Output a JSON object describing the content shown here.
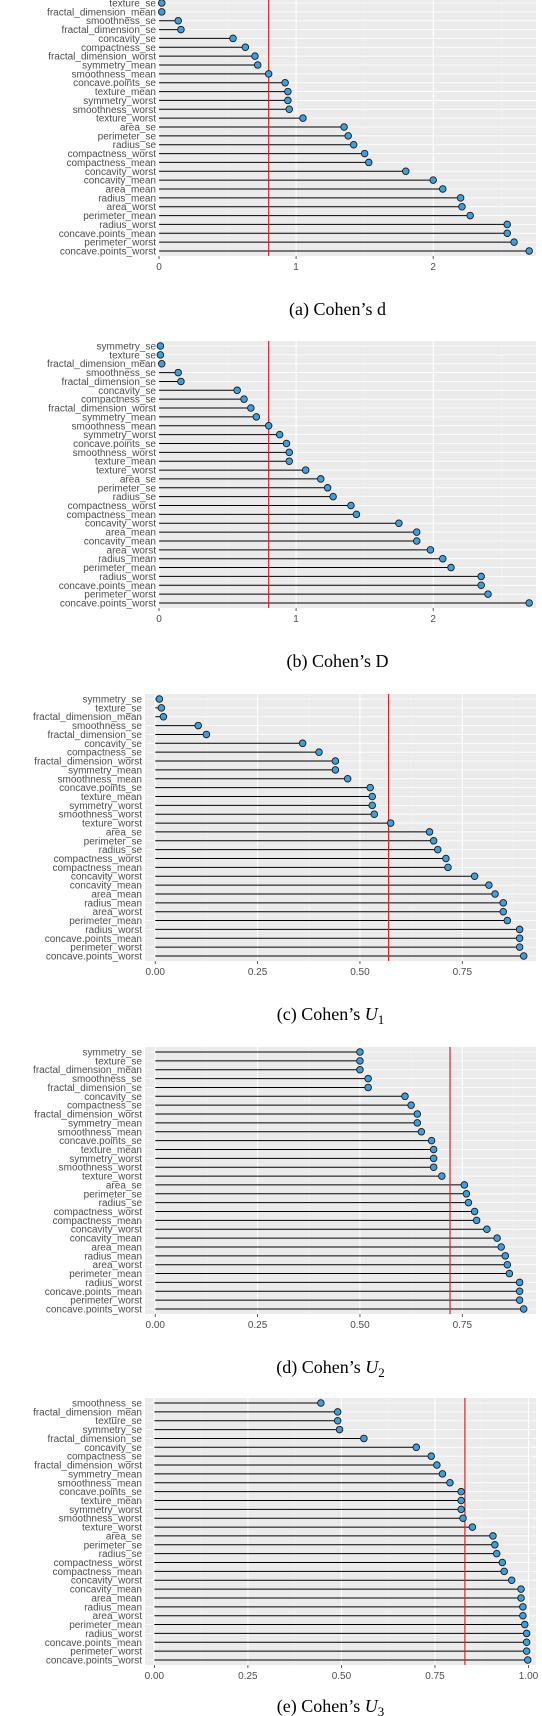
{
  "colors": {
    "panel_bg": "#ebebeb",
    "grid_major": "#ffffff",
    "grid_minor": "#f4f4f4",
    "threshold": "#d62728",
    "point_fill": "#3f9fdc",
    "point_stroke": "#1a1a1a",
    "segment": "#000000"
  },
  "chart_data": [
    {
      "type": "lollipop",
      "caption_label": "(a)",
      "caption_text": "Cohen’s d",
      "caption_math": "",
      "caption_sub": "",
      "xlim": [
        0,
        2.75
      ],
      "xticks": [
        0,
        1,
        2
      ],
      "xtick_labels": [
        "0",
        "1",
        "2"
      ],
      "threshold": 0.8,
      "grid": true,
      "categories": [
        "texture_se",
        "fractal_dimension_mean",
        "smoothness_se",
        "fractal_dimension_se",
        "concavity_se",
        "compactness_se",
        "fractal_dimension_worst",
        "symmetry_mean",
        "smoothness_mean",
        "concave.points_se",
        "texture_mean",
        "symmetry_worst",
        "smoothness_worst",
        "texture_worst",
        "area_se",
        "perimeter_se",
        "radius_se",
        "compactness_worst",
        "compactness_mean",
        "concavity_worst",
        "concavity_mean",
        "area_mean",
        "radius_mean",
        "area_worst",
        "perimeter_mean",
        "radius_worst",
        "concave.points_mean",
        "perimeter_worst",
        "concave.points_worst"
      ],
      "values": [
        0.02,
        0.02,
        0.14,
        0.16,
        0.54,
        0.63,
        0.7,
        0.72,
        0.8,
        0.92,
        0.94,
        0.94,
        0.95,
        1.05,
        1.35,
        1.38,
        1.42,
        1.5,
        1.53,
        1.8,
        2.0,
        2.07,
        2.2,
        2.21,
        2.27,
        2.54,
        2.54,
        2.59,
        2.7
      ]
    },
    {
      "type": "lollipop",
      "caption_label": "(b)",
      "caption_text": "Cohen’s D",
      "caption_math": "",
      "caption_sub": "",
      "xlim": [
        0,
        2.75
      ],
      "xticks": [
        0,
        1,
        2
      ],
      "xtick_labels": [
        "0",
        "1",
        "2"
      ],
      "threshold": 0.8,
      "grid": true,
      "categories": [
        "symmetry_se",
        "texture_se",
        "fractal_dimension_mean",
        "smoothness_se",
        "fractal_dimension_se",
        "concavity_se",
        "compactness_se",
        "fractal_dimension_worst",
        "symmetry_mean",
        "smoothness_mean",
        "symmetry_worst",
        "concave.points_se",
        "smoothness_worst",
        "texture_mean",
        "texture_worst",
        "area_se",
        "perimeter_se",
        "radius_se",
        "compactness_worst",
        "compactness_mean",
        "concavity_worst",
        "area_mean",
        "concavity_mean",
        "area_worst",
        "radius_mean",
        "perimeter_mean",
        "radius_worst",
        "concave.points_mean",
        "perimeter_worst",
        "concave.points_worst"
      ],
      "values": [
        0.01,
        0.01,
        0.02,
        0.14,
        0.16,
        0.57,
        0.62,
        0.67,
        0.71,
        0.8,
        0.88,
        0.93,
        0.95,
        0.95,
        1.07,
        1.18,
        1.23,
        1.27,
        1.4,
        1.44,
        1.75,
        1.88,
        1.88,
        1.98,
        2.07,
        2.13,
        2.35,
        2.35,
        2.4,
        2.7
      ]
    },
    {
      "type": "lollipop",
      "caption_label": "(c)",
      "caption_text": "Cohen’s ",
      "caption_math": "U",
      "caption_sub": "1",
      "xlim": [
        -0.025,
        0.93
      ],
      "xticks": [
        0,
        0.25,
        0.5,
        0.75
      ],
      "xtick_labels": [
        "0.00",
        "0.25",
        "0.50",
        "0.75"
      ],
      "threshold": 0.57,
      "grid": true,
      "categories": [
        "symmetry_se",
        "texture_se",
        "fractal_dimension_mean",
        "smoothness_se",
        "fractal_dimension_se",
        "concavity_se",
        "compactness_se",
        "fractal_dimension_worst",
        "symmetry_mean",
        "smoothness_mean",
        "concave.points_se",
        "texture_mean",
        "symmetry_worst",
        "smoothness_worst",
        "texture_worst",
        "area_se",
        "perimeter_se",
        "radius_se",
        "compactness_worst",
        "compactness_mean",
        "concavity_worst",
        "concavity_mean",
        "area_mean",
        "radius_mean",
        "area_worst",
        "perimeter_mean",
        "radius_worst",
        "concave.points_mean",
        "perimeter_worst",
        "concave.points_worst"
      ],
      "values": [
        0.01,
        0.015,
        0.02,
        0.105,
        0.125,
        0.36,
        0.4,
        0.44,
        0.44,
        0.47,
        0.525,
        0.53,
        0.53,
        0.535,
        0.575,
        0.67,
        0.68,
        0.69,
        0.71,
        0.715,
        0.78,
        0.815,
        0.83,
        0.85,
        0.85,
        0.86,
        0.89,
        0.89,
        0.89,
        0.9
      ]
    },
    {
      "type": "lollipop",
      "caption_label": "(d)",
      "caption_text": "Cohen’s ",
      "caption_math": "U",
      "caption_sub": "2",
      "xlim": [
        -0.025,
        0.93
      ],
      "xticks": [
        0,
        0.25,
        0.5,
        0.75
      ],
      "xtick_labels": [
        "0.00",
        "0.25",
        "0.50",
        "0.75"
      ],
      "threshold": 0.72,
      "grid": true,
      "categories": [
        "symmetry_se",
        "texture_se",
        "fractal_dimension_mean",
        "smoothness_se",
        "fractal_dimension_se",
        "concavity_se",
        "compactness_se",
        "fractal_dimension_worst",
        "symmetry_mean",
        "smoothness_mean",
        "concave.points_se",
        "texture_mean",
        "symmetry_worst",
        "smoothness_worst",
        "texture_worst",
        "area_se",
        "perimeter_se",
        "radius_se",
        "compactness_worst",
        "compactness_mean",
        "concavity_worst",
        "concavity_mean",
        "area_mean",
        "radius_mean",
        "area_worst",
        "perimeter_mean",
        "radius_worst",
        "concave.points_mean",
        "perimeter_worst",
        "concave.points_worst"
      ],
      "values": [
        0.5,
        0.5,
        0.5,
        0.52,
        0.52,
        0.61,
        0.625,
        0.64,
        0.64,
        0.65,
        0.675,
        0.68,
        0.68,
        0.68,
        0.7,
        0.755,
        0.76,
        0.765,
        0.78,
        0.785,
        0.81,
        0.835,
        0.845,
        0.855,
        0.86,
        0.865,
        0.89,
        0.89,
        0.89,
        0.9
      ]
    },
    {
      "type": "lollipop",
      "caption_label": "(e)",
      "caption_text": "Cohen’s ",
      "caption_math": "U",
      "caption_sub": "3",
      "xlim": [
        -0.025,
        1.02
      ],
      "xticks": [
        0,
        0.25,
        0.5,
        0.75,
        1.0
      ],
      "xtick_labels": [
        "0.00",
        "0.25",
        "0.50",
        "0.75",
        "1.00"
      ],
      "threshold": 0.83,
      "grid": true,
      "categories": [
        "smoothness_se",
        "fractal_dimension_mean",
        "texture_se",
        "symmetry_se",
        "fractal_dimension_se",
        "concavity_se",
        "compactness_se",
        "fractal_dimension_worst",
        "symmetry_mean",
        "smoothness_mean",
        "concave.points_se",
        "texture_mean",
        "symmetry_worst",
        "smoothness_worst",
        "texture_worst",
        "area_se",
        "perimeter_se",
        "radius_se",
        "compactness_worst",
        "compactness_mean",
        "concavity_worst",
        "concavity_mean",
        "area_mean",
        "radius_mean",
        "area_worst",
        "perimeter_mean",
        "radius_worst",
        "concave.points_mean",
        "perimeter_worst",
        "concave.points_worst"
      ],
      "values": [
        0.445,
        0.49,
        0.49,
        0.495,
        0.56,
        0.7,
        0.74,
        0.755,
        0.77,
        0.79,
        0.82,
        0.82,
        0.82,
        0.825,
        0.85,
        0.905,
        0.91,
        0.915,
        0.93,
        0.935,
        0.955,
        0.98,
        0.98,
        0.985,
        0.985,
        0.99,
        0.995,
        0.995,
        0.995,
        0.998
      ]
    }
  ]
}
